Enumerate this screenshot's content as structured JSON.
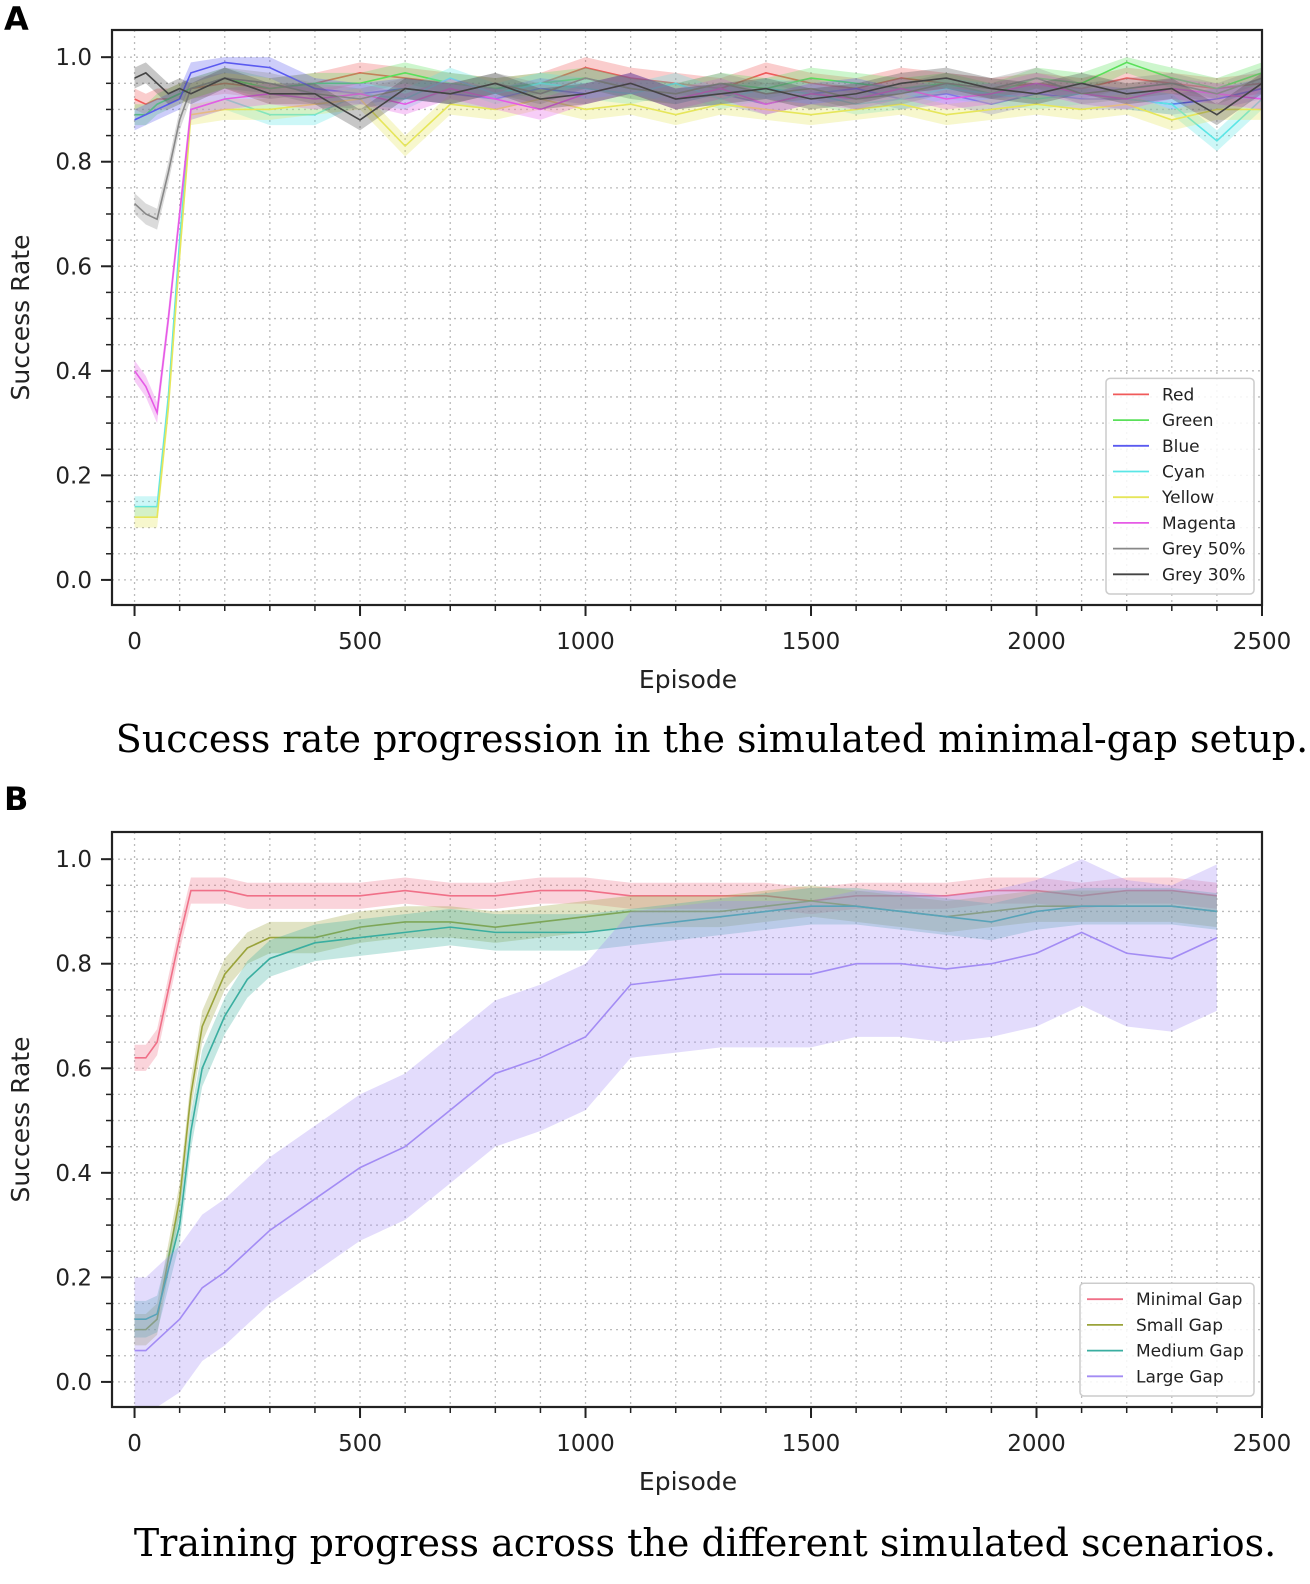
{
  "chart_data": [
    {
      "panel_label": "A",
      "type": "line",
      "title": "",
      "caption": "Success rate progression in the simulated minimal-gap setup.",
      "xlabel": "Episode",
      "ylabel": "Success Rate",
      "xlim": [
        -50,
        2500
      ],
      "ylim": [
        -0.048,
        1.052
      ],
      "xticks": [
        0,
        500,
        1000,
        1500,
        2000,
        2500
      ],
      "yticks": [
        0.0,
        0.2,
        0.4,
        0.6,
        0.8,
        1.0
      ],
      "xtick_labels": [
        "0",
        "500",
        "1000",
        "1500",
        "2000",
        "2500"
      ],
      "ytick_labels": [
        "0.0",
        "0.2",
        "0.4",
        "0.6",
        "0.8",
        "1.0"
      ],
      "grid": true,
      "legend_position": "lower-right",
      "x": [
        0,
        25,
        50,
        75,
        100,
        125,
        200,
        300,
        400,
        500,
        600,
        700,
        800,
        900,
        1000,
        1100,
        1200,
        1300,
        1400,
        1500,
        1600,
        1700,
        1800,
        1900,
        2000,
        2100,
        2200,
        2300,
        2400,
        2500
      ],
      "series": [
        {
          "name": "Red",
          "color": "#f05a5a",
          "band": 0.02,
          "values": [
            0.92,
            0.91,
            0.92,
            0.92,
            0.93,
            0.94,
            0.95,
            0.94,
            0.95,
            0.97,
            0.96,
            0.95,
            0.94,
            0.95,
            0.98,
            0.96,
            0.95,
            0.94,
            0.97,
            0.95,
            0.94,
            0.96,
            0.95,
            0.94,
            0.95,
            0.94,
            0.96,
            0.95,
            0.94,
            0.95
          ]
        },
        {
          "name": "Green",
          "color": "#5ae05a",
          "band": 0.02,
          "values": [
            0.89,
            0.89,
            0.91,
            0.92,
            0.93,
            0.94,
            0.96,
            0.94,
            0.95,
            0.95,
            0.97,
            0.95,
            0.94,
            0.95,
            0.96,
            0.94,
            0.93,
            0.95,
            0.94,
            0.96,
            0.95,
            0.94,
            0.95,
            0.93,
            0.96,
            0.95,
            0.99,
            0.96,
            0.94,
            0.97
          ]
        },
        {
          "name": "Blue",
          "color": "#5a5af0",
          "band": 0.02,
          "values": [
            0.88,
            0.89,
            0.9,
            0.91,
            0.92,
            0.97,
            0.99,
            0.98,
            0.94,
            0.93,
            0.94,
            0.93,
            0.92,
            0.94,
            0.93,
            0.95,
            0.92,
            0.93,
            0.91,
            0.93,
            0.94,
            0.92,
            0.93,
            0.91,
            0.93,
            0.92,
            0.92,
            0.91,
            0.92,
            0.94
          ]
        },
        {
          "name": "Cyan",
          "color": "#5ae6e6",
          "band": 0.02,
          "values": [
            0.14,
            0.14,
            0.14,
            0.35,
            0.65,
            0.9,
            0.92,
            0.89,
            0.89,
            0.93,
            0.92,
            0.96,
            0.93,
            0.95,
            0.94,
            0.93,
            0.95,
            0.92,
            0.94,
            0.93,
            0.91,
            0.92,
            0.94,
            0.93,
            0.92,
            0.93,
            0.92,
            0.91,
            0.84,
            0.92
          ]
        },
        {
          "name": "Yellow",
          "color": "#e6e65a",
          "band": 0.02,
          "values": [
            0.12,
            0.12,
            0.12,
            0.33,
            0.62,
            0.89,
            0.9,
            0.9,
            0.91,
            0.92,
            0.83,
            0.91,
            0.9,
            0.92,
            0.9,
            0.91,
            0.89,
            0.91,
            0.9,
            0.89,
            0.9,
            0.91,
            0.89,
            0.9,
            0.91,
            0.9,
            0.91,
            0.88,
            0.9,
            0.9
          ]
        },
        {
          "name": "Magenta",
          "color": "#e65ae6",
          "band": 0.02,
          "values": [
            0.4,
            0.37,
            0.32,
            0.5,
            0.7,
            0.9,
            0.92,
            0.93,
            0.92,
            0.93,
            0.91,
            0.94,
            0.92,
            0.9,
            0.93,
            0.95,
            0.92,
            0.94,
            0.91,
            0.93,
            0.92,
            0.94,
            0.92,
            0.93,
            0.95,
            0.93,
            0.92,
            0.94,
            0.93,
            0.92
          ]
        },
        {
          "name": "Grey 50%",
          "color": "#888888",
          "band": 0.02,
          "values": [
            0.72,
            0.7,
            0.69,
            0.78,
            0.88,
            0.94,
            0.96,
            0.95,
            0.93,
            0.92,
            0.94,
            0.93,
            0.95,
            0.93,
            0.96,
            0.94,
            0.93,
            0.95,
            0.93,
            0.94,
            0.92,
            0.93,
            0.95,
            0.94,
            0.96,
            0.93,
            0.94,
            0.95,
            0.93,
            0.96
          ]
        },
        {
          "name": "Grey 30%",
          "color": "#444444",
          "band": 0.02,
          "values": [
            0.96,
            0.97,
            0.95,
            0.93,
            0.94,
            0.93,
            0.96,
            0.93,
            0.93,
            0.88,
            0.94,
            0.93,
            0.95,
            0.92,
            0.93,
            0.95,
            0.92,
            0.93,
            0.94,
            0.92,
            0.93,
            0.95,
            0.96,
            0.94,
            0.93,
            0.95,
            0.93,
            0.94,
            0.89,
            0.95
          ]
        }
      ]
    },
    {
      "panel_label": "B",
      "type": "line",
      "title": "",
      "caption": "Training progress across the different simulated scenarios.",
      "xlabel": "Episode",
      "ylabel": "Success Rate",
      "xlim": [
        -50,
        2500
      ],
      "ylim": [
        -0.048,
        1.052
      ],
      "xticks": [
        0,
        500,
        1000,
        1500,
        2000,
        2500
      ],
      "yticks": [
        0.0,
        0.2,
        0.4,
        0.6,
        0.8,
        1.0
      ],
      "xtick_labels": [
        "0",
        "500",
        "1000",
        "1500",
        "2000",
        "2500"
      ],
      "ytick_labels": [
        "0.0",
        "0.2",
        "0.4",
        "0.6",
        "0.8",
        "1.0"
      ],
      "grid": true,
      "legend_position": "lower-right",
      "x": [
        0,
        25,
        50,
        100,
        125,
        150,
        200,
        250,
        300,
        400,
        500,
        600,
        700,
        800,
        900,
        1000,
        1100,
        1200,
        1300,
        1400,
        1500,
        1600,
        1700,
        1800,
        1900,
        2000,
        2100,
        2200,
        2300,
        2400
      ],
      "series": [
        {
          "name": "Minimal Gap",
          "color": "#f07088",
          "band": 0.025,
          "values": [
            0.62,
            0.62,
            0.65,
            0.85,
            0.94,
            0.94,
            0.94,
            0.93,
            0.93,
            0.93,
            0.93,
            0.94,
            0.93,
            0.93,
            0.94,
            0.94,
            0.93,
            0.93,
            0.93,
            0.93,
            0.92,
            0.93,
            0.93,
            0.93,
            0.94,
            0.94,
            0.93,
            0.94,
            0.94,
            0.93
          ]
        },
        {
          "name": "Small Gap",
          "color": "#9aa33a",
          "band": 0.03,
          "values": [
            0.1,
            0.1,
            0.12,
            0.35,
            0.55,
            0.68,
            0.78,
            0.83,
            0.85,
            0.85,
            0.87,
            0.88,
            0.88,
            0.87,
            0.88,
            0.89,
            0.9,
            0.9,
            0.9,
            0.91,
            0.92,
            0.91,
            0.9,
            0.89,
            0.9,
            0.91,
            0.91,
            0.91,
            0.91,
            0.9
          ]
        },
        {
          "name": "Medium Gap",
          "color": "#3aaea0",
          "band": 0.035,
          "values": [
            0.12,
            0.12,
            0.13,
            0.3,
            0.48,
            0.6,
            0.7,
            0.77,
            0.81,
            0.84,
            0.85,
            0.86,
            0.87,
            0.86,
            0.86,
            0.86,
            0.87,
            0.88,
            0.89,
            0.9,
            0.91,
            0.91,
            0.9,
            0.89,
            0.88,
            0.9,
            0.91,
            0.91,
            0.91,
            0.9
          ]
        },
        {
          "name": "Large Gap",
          "color": "#a38cf4",
          "band": 0.14,
          "values": [
            0.06,
            0.06,
            0.08,
            0.12,
            0.15,
            0.18,
            0.21,
            0.25,
            0.29,
            0.35,
            0.41,
            0.45,
            0.52,
            0.59,
            0.62,
            0.66,
            0.76,
            0.77,
            0.78,
            0.78,
            0.78,
            0.8,
            0.8,
            0.79,
            0.8,
            0.82,
            0.86,
            0.82,
            0.81,
            0.85
          ]
        }
      ]
    }
  ]
}
